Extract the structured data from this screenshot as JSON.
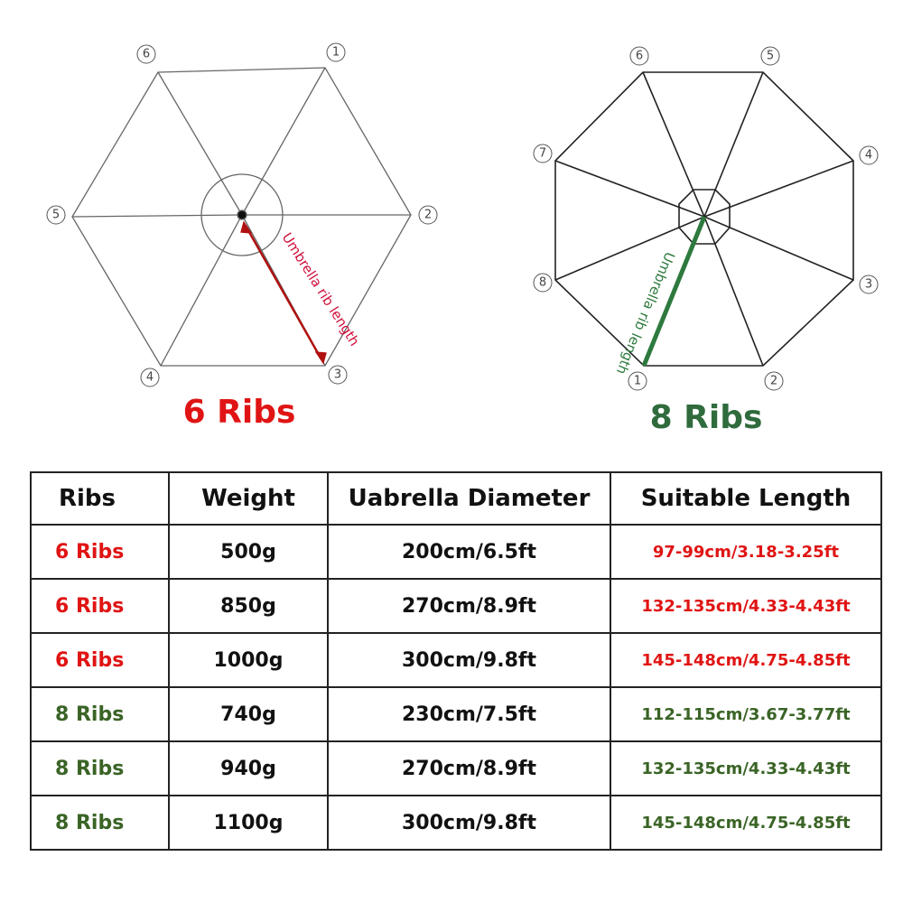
{
  "diagrams": [
    {
      "vertex_labels": [
        "6",
        "1",
        "2",
        "3",
        "4",
        "5"
      ],
      "rib_label": "Umbrella rib length",
      "title": "6 Ribs"
    },
    {
      "vertex_labels": [
        "6",
        "5",
        "4",
        "3",
        "2",
        "1",
        "8",
        "7"
      ],
      "rib_label": "Umbrella rib length",
      "title": "8 Ribs"
    }
  ],
  "table": {
    "header": [
      "Ribs",
      "Weight",
      "Uabrella Diameter",
      "Suitable Length"
    ],
    "rows": [
      [
        "6 Ribs",
        "500g",
        "200cm/6.5ft",
        "97-99cm/3.18-3.25ft"
      ],
      [
        "6 Ribs",
        "850g",
        "270cm/8.9ft",
        "132-135cm/4.33-4.43ft"
      ],
      [
        "6 Ribs",
        "1000g",
        "300cm/9.8ft",
        "145-148cm/4.75-4.85ft"
      ],
      [
        "8 Ribs",
        "740g",
        "230cm/7.5ft",
        "112-115cm/3.67-3.77ft"
      ],
      [
        "8 Ribs",
        "940g",
        "270cm/8.9ft",
        "132-135cm/4.33-4.43ft"
      ],
      [
        "8 Ribs",
        "1100g",
        "300cm/9.8ft",
        "145-148cm/4.75-4.85ft"
      ]
    ]
  }
}
